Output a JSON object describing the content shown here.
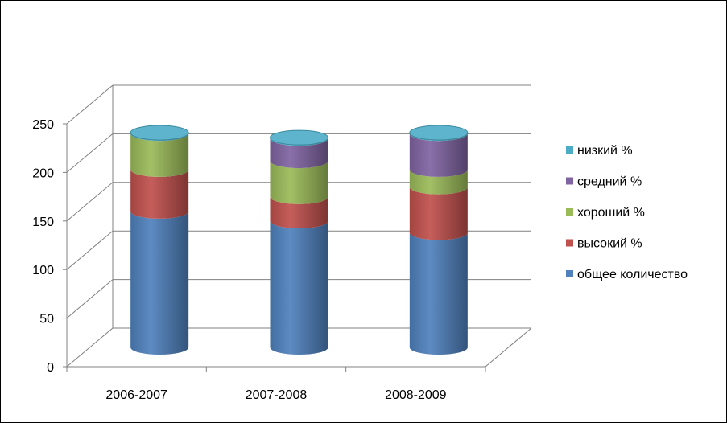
{
  "chart_data": {
    "type": "bar",
    "stacked": true,
    "style": "3d-cylinder",
    "categories": [
      "2006-2007",
      "2007-2008",
      "2008-2009"
    ],
    "series": [
      {
        "name": "общее количество",
        "color": "#4f81bd",
        "values": [
          140,
          130,
          118
        ]
      },
      {
        "name": "высокий %",
        "color": "#c0504d",
        "values": [
          43,
          25,
          47
        ]
      },
      {
        "name": "хороший %",
        "color": "#9bbb59",
        "values": [
          37,
          37,
          18
        ]
      },
      {
        "name": "средний %",
        "color": "#8064a2",
        "values": [
          0,
          23,
          37
        ]
      },
      {
        "name": "низкий %",
        "color": "#4bacc6",
        "values": [
          1,
          1,
          1
        ]
      }
    ],
    "yticks": [
      "0",
      "50",
      "100",
      "150",
      "200",
      "250"
    ],
    "ylim": [
      0,
      250
    ],
    "grid": true,
    "legend_position": "right",
    "title": "",
    "xlabel": "",
    "ylabel": ""
  }
}
